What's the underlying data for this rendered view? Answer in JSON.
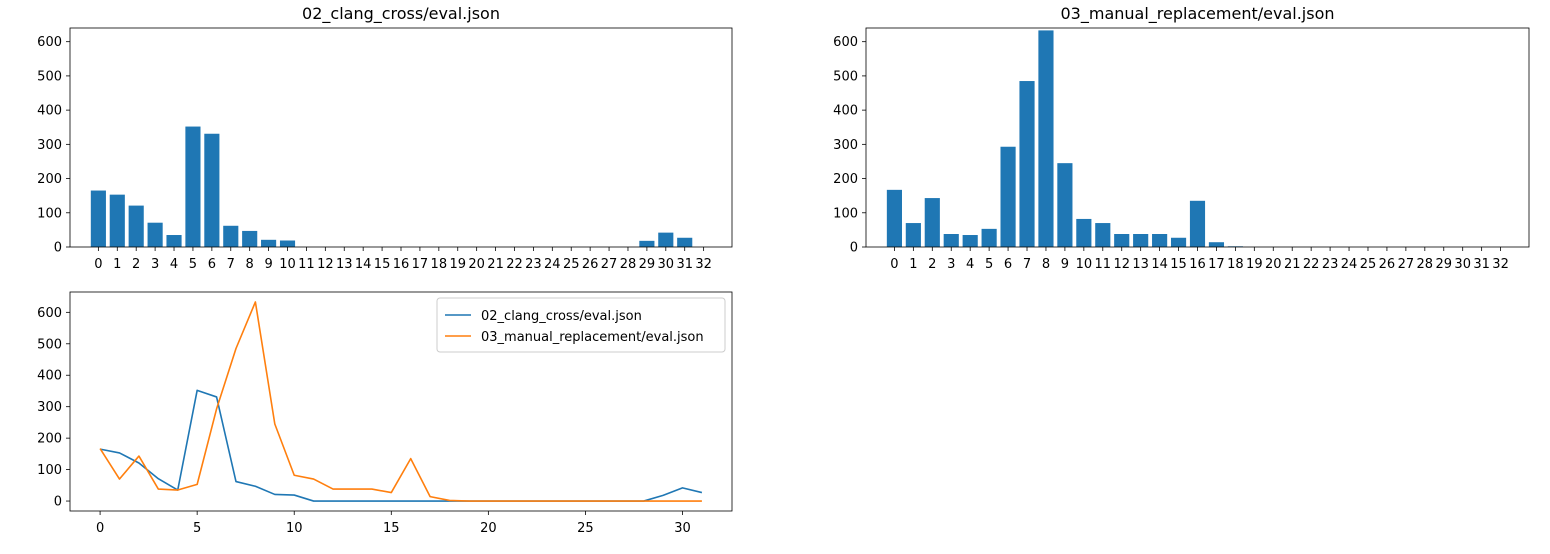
{
  "chart_data": [
    {
      "type": "bar",
      "title": "02_clang_cross/eval.json",
      "categories": [
        "0",
        "1",
        "2",
        "3",
        "4",
        "5",
        "6",
        "7",
        "8",
        "9",
        "10",
        "11",
        "12",
        "13",
        "14",
        "15",
        "16",
        "17",
        "18",
        "19",
        "20",
        "21",
        "22",
        "23",
        "24",
        "25",
        "26",
        "27",
        "28",
        "29",
        "30",
        "31",
        "32"
      ],
      "values": [
        165,
        153,
        121,
        71,
        35,
        352,
        331,
        62,
        47,
        21,
        19,
        0,
        0,
        0,
        0,
        0,
        0,
        0,
        0,
        0,
        0,
        0,
        0,
        0,
        0,
        0,
        0,
        0,
        0,
        18,
        42,
        27,
        0
      ],
      "ylim": [
        0,
        640
      ],
      "yticks": [
        0,
        100,
        200,
        300,
        400,
        500,
        600
      ],
      "color": "#1f77b4",
      "grid": false
    },
    {
      "type": "bar",
      "title": "03_manual_replacement/eval.json",
      "categories": [
        "0",
        "1",
        "2",
        "3",
        "4",
        "5",
        "6",
        "7",
        "8",
        "9",
        "10",
        "11",
        "12",
        "13",
        "14",
        "15",
        "16",
        "17",
        "18",
        "19",
        "20",
        "21",
        "22",
        "23",
        "24",
        "25",
        "26",
        "27",
        "28",
        "29",
        "30",
        "31",
        "32"
      ],
      "values": [
        167,
        70,
        143,
        38,
        35,
        53,
        293,
        485,
        633,
        245,
        82,
        70,
        38,
        38,
        38,
        27,
        135,
        14,
        2,
        0,
        0,
        0,
        0,
        0,
        0,
        0,
        0,
        0,
        0,
        0,
        0,
        0,
        0
      ],
      "ylim": [
        0,
        640
      ],
      "yticks": [
        0,
        100,
        200,
        300,
        400,
        500,
        600
      ],
      "color": "#1f77b4",
      "grid": false
    },
    {
      "type": "line",
      "title": "",
      "xlim": [
        -1.55,
        32.55
      ],
      "ylim": [
        -31.65,
        664.65
      ],
      "xticks": [
        0,
        5,
        10,
        15,
        20,
        25,
        30
      ],
      "yticks": [
        0,
        100,
        200,
        300,
        400,
        500,
        600
      ],
      "legend_position": "upper right",
      "grid": false,
      "series": [
        {
          "name": "02_clang_cross/eval.json",
          "color": "#1f77b4",
          "x": [
            0,
            1,
            2,
            3,
            4,
            5,
            6,
            7,
            8,
            9,
            10,
            11,
            12,
            13,
            14,
            15,
            16,
            17,
            18,
            19,
            20,
            21,
            22,
            23,
            24,
            25,
            26,
            27,
            28,
            29,
            30,
            31
          ],
          "values": [
            165,
            153,
            121,
            71,
            35,
            352,
            331,
            62,
            47,
            21,
            19,
            0,
            0,
            0,
            0,
            0,
            0,
            0,
            0,
            0,
            0,
            0,
            0,
            0,
            0,
            0,
            0,
            0,
            0,
            18,
            42,
            27
          ]
        },
        {
          "name": "03_manual_replacement/eval.json",
          "color": "#ff7f0e",
          "x": [
            0,
            1,
            2,
            3,
            4,
            5,
            6,
            7,
            8,
            9,
            10,
            11,
            12,
            13,
            14,
            15,
            16,
            17,
            18,
            19,
            20,
            21,
            22,
            23,
            24,
            25,
            26,
            27,
            28,
            29,
            30,
            31
          ],
          "values": [
            167,
            70,
            143,
            38,
            35,
            53,
            293,
            485,
            633,
            245,
            82,
            70,
            38,
            38,
            38,
            27,
            135,
            14,
            2,
            0,
            0,
            0,
            0,
            0,
            0,
            0,
            0,
            0,
            0,
            0,
            0,
            0
          ]
        }
      ]
    }
  ]
}
